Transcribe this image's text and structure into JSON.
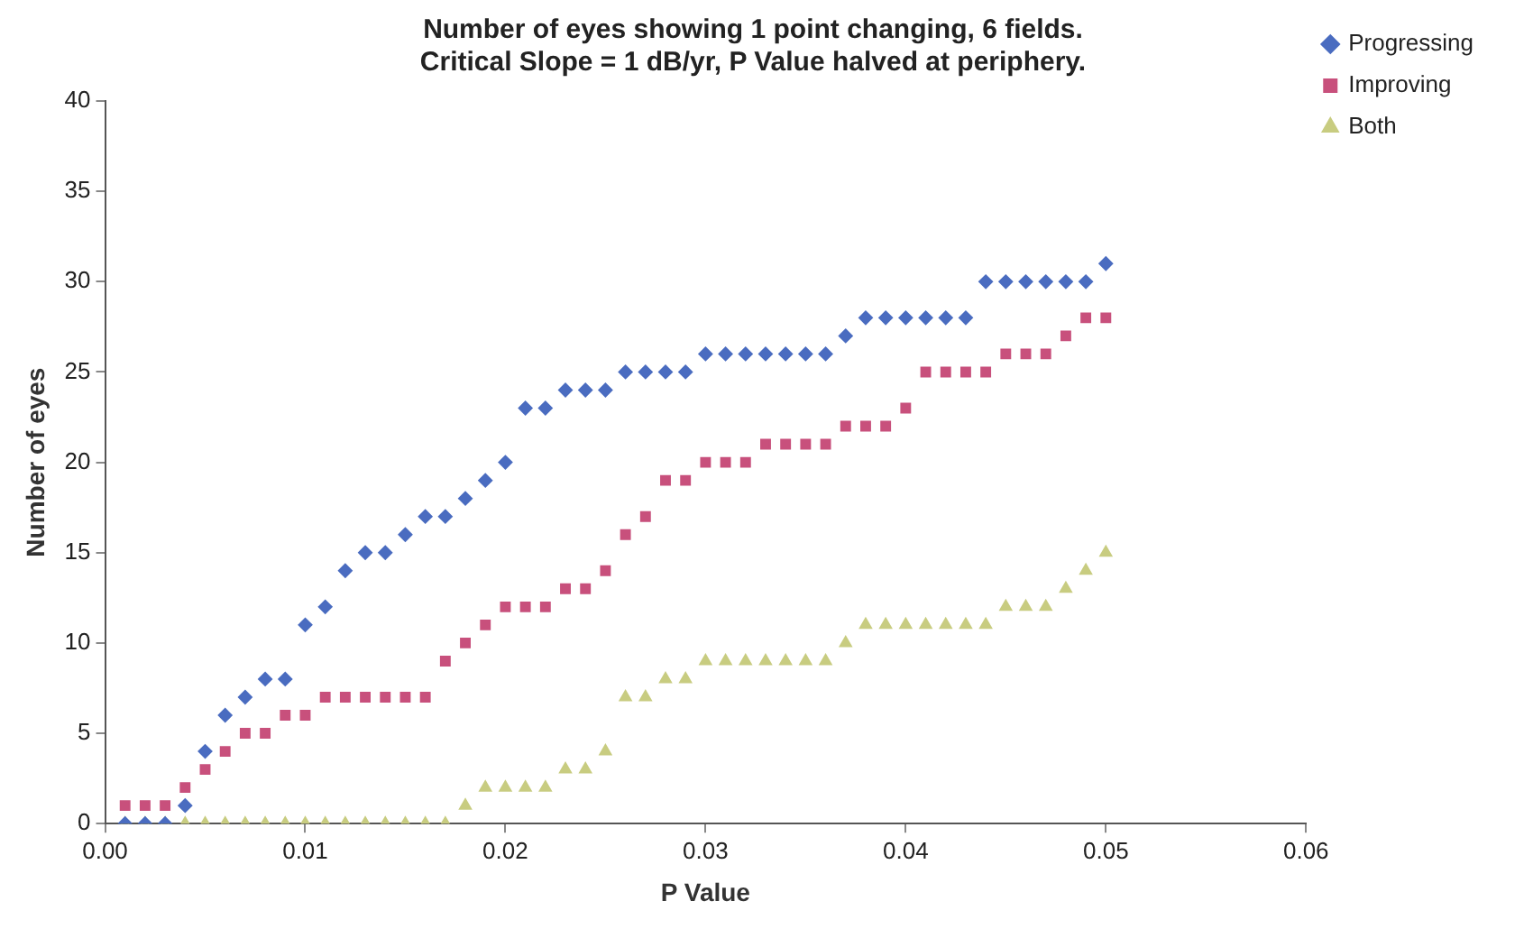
{
  "chart_data": {
    "type": "scatter",
    "title": "Number of eyes showing 1 point changing, 6 fields.\nCritical Slope = 1 dB/yr, P Value halved at periphery.",
    "xlabel": "P Value",
    "ylabel": "Number of eyes",
    "x": [
      0.001,
      0.002,
      0.003,
      0.004,
      0.005,
      0.006,
      0.007,
      0.008,
      0.009,
      0.01,
      0.011,
      0.012,
      0.013,
      0.014,
      0.015,
      0.016,
      0.017,
      0.018,
      0.019,
      0.02,
      0.021,
      0.022,
      0.023,
      0.024,
      0.025,
      0.026,
      0.027,
      0.028,
      0.029,
      0.03,
      0.031,
      0.032,
      0.033,
      0.034,
      0.035,
      0.036,
      0.037,
      0.038,
      0.039,
      0.04,
      0.041,
      0.042,
      0.043,
      0.044,
      0.045,
      0.046,
      0.047,
      0.048,
      0.049,
      0.05
    ],
    "series": [
      {
        "name": "Progressing",
        "color": "#4a6cc0",
        "marker": "diamond",
        "values": [
          0,
          0,
          0,
          1,
          4,
          6,
          7,
          8,
          8,
          11,
          12,
          14,
          15,
          15,
          16,
          17,
          17,
          18,
          19,
          20,
          23,
          23,
          24,
          24,
          24,
          25,
          25,
          25,
          25,
          26,
          26,
          26,
          26,
          26,
          26,
          26,
          27,
          28,
          28,
          28,
          28,
          28,
          28,
          30,
          30,
          30,
          30,
          30,
          30,
          31
        ]
      },
      {
        "name": "Improving",
        "color": "#c8507c",
        "marker": "square",
        "values": [
          1,
          1,
          1,
          2,
          3,
          4,
          5,
          5,
          6,
          6,
          7,
          7,
          7,
          7,
          7,
          7,
          9,
          10,
          11,
          12,
          12,
          12,
          13,
          13,
          14,
          16,
          17,
          19,
          19,
          20,
          20,
          20,
          21,
          21,
          21,
          21,
          22,
          22,
          22,
          23,
          25,
          25,
          25,
          25,
          26,
          26,
          26,
          27,
          28,
          28
        ]
      },
      {
        "name": "Both",
        "color": "#c8cc80",
        "marker": "triangle",
        "values": [
          0,
          0,
          0,
          0,
          0,
          0,
          0,
          0,
          0,
          0,
          0,
          0,
          0,
          0,
          0,
          0,
          0,
          1,
          2,
          2,
          2,
          2,
          3,
          3,
          4,
          7,
          7,
          8,
          8,
          9,
          9,
          9,
          9,
          9,
          9,
          9,
          10,
          11,
          11,
          11,
          11,
          11,
          11,
          11,
          12,
          12,
          12,
          13,
          14,
          15
        ]
      }
    ],
    "xlim": [
      0,
      0.06
    ],
    "xticks": [
      {
        "value": 0,
        "label": "0.00"
      },
      {
        "value": 0.01,
        "label": "0.01"
      },
      {
        "value": 0.02,
        "label": "0.02"
      },
      {
        "value": 0.03,
        "label": "0.03"
      },
      {
        "value": 0.04,
        "label": "0.04"
      },
      {
        "value": 0.05,
        "label": "0.05"
      },
      {
        "value": 0.06,
        "label": "0.06"
      }
    ],
    "ylim": [
      0,
      40
    ],
    "yticks": [
      0,
      5,
      10,
      15,
      20,
      25,
      30,
      35,
      40
    ],
    "grid": false,
    "legend": "top right"
  }
}
